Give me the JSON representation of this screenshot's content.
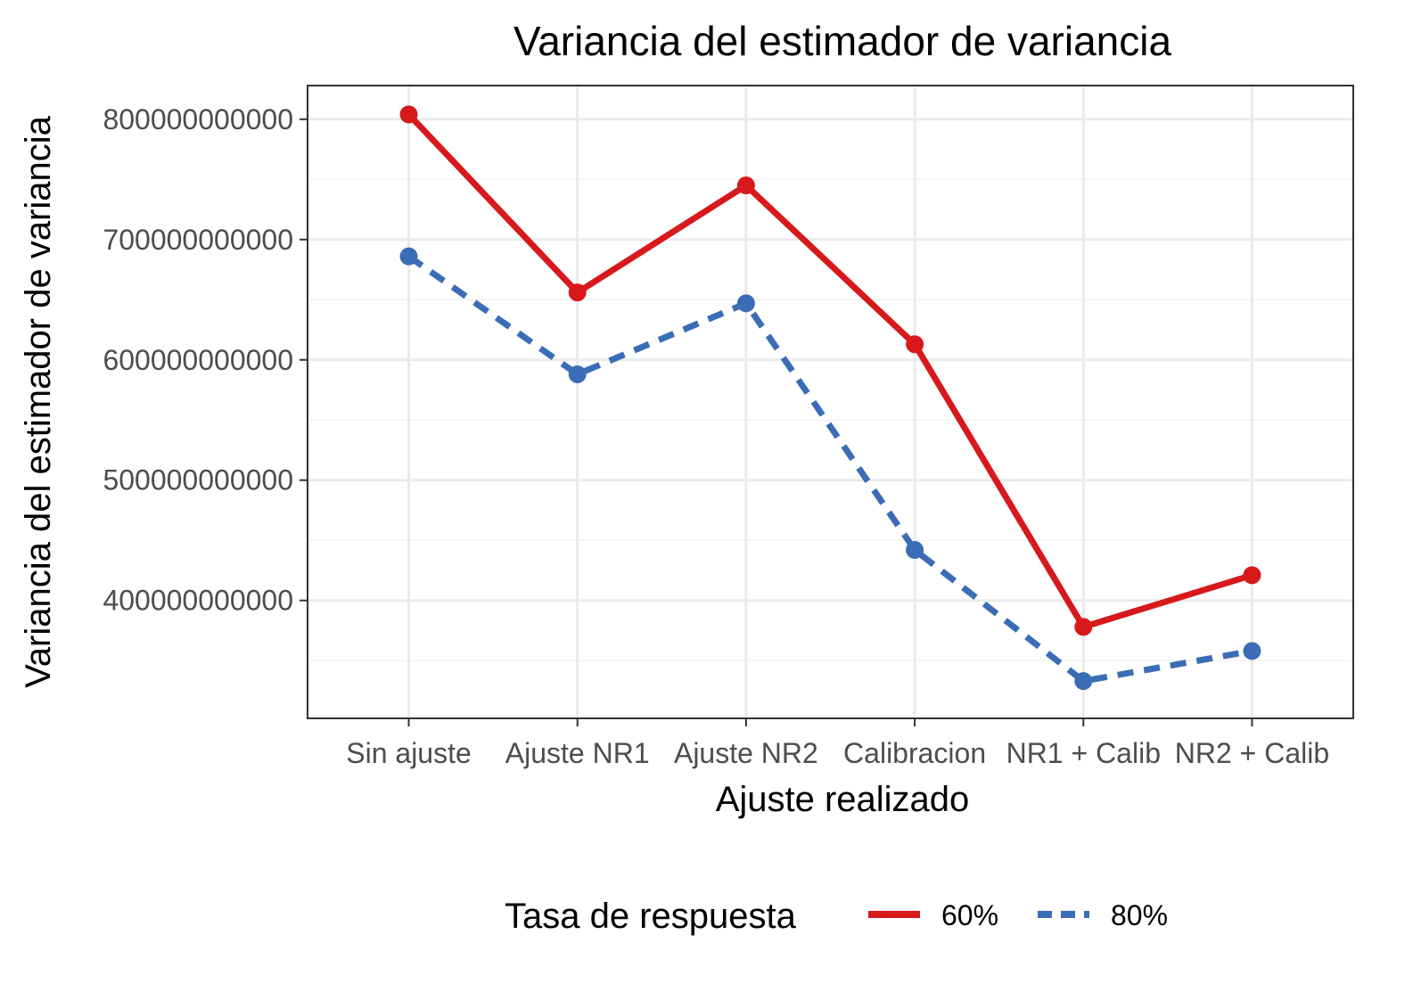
{
  "chart_data": {
    "type": "line",
    "title": "Variancia del estimador de variancia",
    "xlabel": "Ajuste realizado",
    "ylabel": "Variancia del estimador de variancia",
    "categories": [
      "Sin ajuste",
      "Ajuste NR1",
      "Ajuste NR2",
      "Calibracion",
      "NR1 + Calib",
      "NR2 + Calib"
    ],
    "y_ticks": [
      400000000000,
      500000000000,
      600000000000,
      700000000000,
      800000000000
    ],
    "y_tick_labels": [
      "400000000000",
      "500000000000",
      "600000000000",
      "700000000000",
      "800000000000"
    ],
    "ylim": [
      302000000000,
      828000000000
    ],
    "grid": true,
    "legend": {
      "title": "Tasa de respuesta",
      "position": "bottom"
    },
    "series": [
      {
        "name": "60%",
        "color": "#d7191c",
        "line_style": "solid",
        "values": [
          804000000000,
          656000000000,
          745000000000,
          613000000000,
          378000000000,
          421000000000
        ]
      },
      {
        "name": "80%",
        "color": "#3a6db5",
        "line_style": "dashed",
        "values": [
          686000000000,
          588000000000,
          647000000000,
          442000000000,
          333000000000,
          358000000000
        ]
      }
    ]
  }
}
